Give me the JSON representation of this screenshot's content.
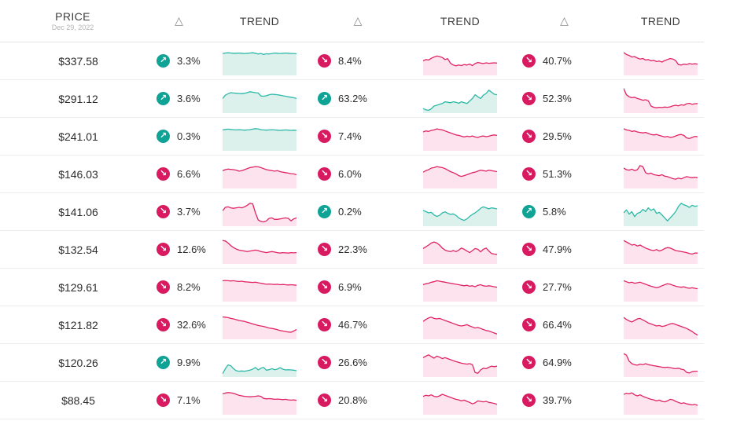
{
  "header": {
    "price_label": "PRICE",
    "price_date": "Dec 29, 2022",
    "delta_label": "△",
    "trend_label": "TREND"
  },
  "colors": {
    "up": {
      "icon": "#0fa396",
      "line": "#2cb9a8",
      "fill": "#dcf1ec"
    },
    "down": {
      "icon": "#d81b60",
      "line": "#e02565",
      "fill": "#fce3ee"
    }
  },
  "icons": {
    "up_arrow": "↗",
    "down_arrow": "↘"
  },
  "rows": [
    {
      "price": "$337.58",
      "cells": [
        {
          "dir": "up",
          "pct": "3.3%",
          "spark": [
            0.84,
            0.86,
            0.87,
            0.86,
            0.85,
            0.85,
            0.86,
            0.85,
            0.84,
            0.85,
            0.86,
            0.87,
            0.85,
            0.82,
            0.84,
            0.8,
            0.83,
            0.82,
            0.84,
            0.86,
            0.85,
            0.84,
            0.85,
            0.86,
            0.85,
            0.84,
            0.84,
            0.83
          ]
        },
        {
          "dir": "down",
          "pct": "8.4%",
          "spark": [
            0.55,
            0.6,
            0.58,
            0.65,
            0.7,
            0.74,
            0.72,
            0.68,
            0.6,
            0.63,
            0.45,
            0.38,
            0.35,
            0.38,
            0.36,
            0.4,
            0.38,
            0.42,
            0.36,
            0.44,
            0.48,
            0.46,
            0.44,
            0.47,
            0.45,
            0.46,
            0.47,
            0.46
          ]
        },
        {
          "dir": "down",
          "pct": "40.7%",
          "spark": [
            0.88,
            0.8,
            0.76,
            0.7,
            0.72,
            0.66,
            0.62,
            0.64,
            0.58,
            0.6,
            0.55,
            0.57,
            0.52,
            0.54,
            0.5,
            0.56,
            0.6,
            0.64,
            0.62,
            0.56,
            0.4,
            0.38,
            0.42,
            0.4,
            0.44,
            0.42,
            0.43,
            0.42
          ]
        }
      ]
    },
    {
      "price": "$291.12",
      "cells": [
        {
          "dir": "up",
          "pct": "3.6%",
          "spark": [
            0.55,
            0.68,
            0.74,
            0.78,
            0.77,
            0.76,
            0.75,
            0.74,
            0.76,
            0.78,
            0.82,
            0.8,
            0.78,
            0.77,
            0.65,
            0.64,
            0.66,
            0.7,
            0.72,
            0.71,
            0.7,
            0.68,
            0.66,
            0.64,
            0.62,
            0.6,
            0.58,
            0.55
          ]
        },
        {
          "dir": "up",
          "pct": "63.2%",
          "spark": [
            0.15,
            0.1,
            0.08,
            0.14,
            0.25,
            0.28,
            0.32,
            0.35,
            0.42,
            0.4,
            0.38,
            0.42,
            0.4,
            0.36,
            0.42,
            0.38,
            0.35,
            0.45,
            0.55,
            0.7,
            0.62,
            0.55,
            0.68,
            0.75,
            0.88,
            0.8,
            0.72,
            0.7
          ]
        },
        {
          "dir": "down",
          "pct": "52.3%",
          "spark": [
            0.95,
            0.7,
            0.62,
            0.58,
            0.6,
            0.55,
            0.52,
            0.48,
            0.5,
            0.46,
            0.25,
            0.2,
            0.18,
            0.2,
            0.19,
            0.21,
            0.2,
            0.22,
            0.26,
            0.28,
            0.26,
            0.3,
            0.28,
            0.34,
            0.36,
            0.32,
            0.34,
            0.35
          ]
        }
      ]
    },
    {
      "price": "$241.01",
      "cells": [
        {
          "dir": "up",
          "pct": "0.3%",
          "spark": [
            0.8,
            0.82,
            0.83,
            0.82,
            0.81,
            0.8,
            0.81,
            0.8,
            0.79,
            0.8,
            0.81,
            0.83,
            0.85,
            0.84,
            0.81,
            0.8,
            0.79,
            0.8,
            0.81,
            0.8,
            0.79,
            0.78,
            0.79,
            0.8,
            0.79,
            0.78,
            0.79,
            0.78
          ]
        },
        {
          "dir": "down",
          "pct": "7.4%",
          "spark": [
            0.72,
            0.76,
            0.74,
            0.78,
            0.8,
            0.84,
            0.82,
            0.8,
            0.76,
            0.72,
            0.68,
            0.64,
            0.6,
            0.58,
            0.55,
            0.52,
            0.55,
            0.53,
            0.56,
            0.52,
            0.5,
            0.54,
            0.56,
            0.53,
            0.55,
            0.58,
            0.6,
            0.58
          ]
        },
        {
          "dir": "down",
          "pct": "29.5%",
          "spark": [
            0.85,
            0.8,
            0.78,
            0.74,
            0.76,
            0.72,
            0.7,
            0.68,
            0.7,
            0.66,
            0.62,
            0.6,
            0.62,
            0.58,
            0.55,
            0.52,
            0.54,
            0.5,
            0.52,
            0.56,
            0.6,
            0.62,
            0.58,
            0.48,
            0.46,
            0.5,
            0.54,
            0.53
          ]
        }
      ]
    },
    {
      "price": "$146.03",
      "cells": [
        {
          "dir": "down",
          "pct": "6.6%",
          "spark": [
            0.68,
            0.72,
            0.74,
            0.73,
            0.72,
            0.7,
            0.66,
            0.68,
            0.72,
            0.76,
            0.8,
            0.82,
            0.84,
            0.83,
            0.8,
            0.76,
            0.72,
            0.7,
            0.68,
            0.66,
            0.68,
            0.64,
            0.62,
            0.6,
            0.58,
            0.56,
            0.55,
            0.52
          ]
        },
        {
          "dir": "down",
          "pct": "6.0%",
          "spark": [
            0.62,
            0.68,
            0.72,
            0.78,
            0.8,
            0.84,
            0.82,
            0.8,
            0.76,
            0.7,
            0.64,
            0.6,
            0.55,
            0.48,
            0.45,
            0.48,
            0.52,
            0.56,
            0.6,
            0.62,
            0.66,
            0.7,
            0.68,
            0.66,
            0.7,
            0.68,
            0.66,
            0.64
          ]
        },
        {
          "dir": "down",
          "pct": "51.3%",
          "spark": [
            0.78,
            0.72,
            0.7,
            0.74,
            0.68,
            0.72,
            0.88,
            0.84,
            0.6,
            0.55,
            0.58,
            0.52,
            0.5,
            0.48,
            0.52,
            0.46,
            0.44,
            0.4,
            0.36,
            0.34,
            0.38,
            0.35,
            0.4,
            0.44,
            0.42,
            0.4,
            0.42,
            0.4
          ]
        }
      ]
    },
    {
      "price": "$141.06",
      "cells": [
        {
          "dir": "down",
          "pct": "3.7%",
          "spark": [
            0.58,
            0.72,
            0.74,
            0.7,
            0.68,
            0.7,
            0.72,
            0.7,
            0.74,
            0.8,
            0.88,
            0.86,
            0.5,
            0.22,
            0.16,
            0.14,
            0.18,
            0.28,
            0.3,
            0.24,
            0.24,
            0.26,
            0.28,
            0.3,
            0.28,
            0.18,
            0.26,
            0.3
          ]
        },
        {
          "dir": "up",
          "pct": "0.2%",
          "spark": [
            0.6,
            0.55,
            0.5,
            0.52,
            0.42,
            0.36,
            0.4,
            0.5,
            0.54,
            0.48,
            0.44,
            0.46,
            0.4,
            0.3,
            0.24,
            0.2,
            0.26,
            0.36,
            0.44,
            0.5,
            0.58,
            0.68,
            0.74,
            0.7,
            0.66,
            0.7,
            0.68,
            0.66
          ]
        },
        {
          "dir": "up",
          "pct": "5.8%",
          "spark": [
            0.5,
            0.62,
            0.45,
            0.55,
            0.35,
            0.48,
            0.52,
            0.64,
            0.55,
            0.7,
            0.6,
            0.66,
            0.48,
            0.52,
            0.42,
            0.3,
            0.18,
            0.3,
            0.42,
            0.55,
            0.75,
            0.88,
            0.82,
            0.78,
            0.72,
            0.8,
            0.76,
            0.78
          ]
        }
      ]
    },
    {
      "price": "$132.54",
      "cells": [
        {
          "dir": "down",
          "pct": "12.6%",
          "spark": [
            0.9,
            0.88,
            0.8,
            0.7,
            0.62,
            0.56,
            0.52,
            0.5,
            0.48,
            0.46,
            0.48,
            0.5,
            0.52,
            0.5,
            0.46,
            0.44,
            0.42,
            0.44,
            0.46,
            0.44,
            0.42,
            0.4,
            0.42,
            0.41,
            0.4,
            0.42,
            0.41,
            0.42
          ]
        },
        {
          "dir": "down",
          "pct": "22.3%",
          "spark": [
            0.58,
            0.65,
            0.72,
            0.8,
            0.84,
            0.8,
            0.72,
            0.6,
            0.52,
            0.48,
            0.46,
            0.5,
            0.46,
            0.52,
            0.6,
            0.55,
            0.48,
            0.42,
            0.5,
            0.58,
            0.55,
            0.45,
            0.55,
            0.6,
            0.48,
            0.38,
            0.36,
            0.35
          ]
        },
        {
          "dir": "down",
          "pct": "47.9%",
          "spark": [
            0.9,
            0.84,
            0.78,
            0.72,
            0.74,
            0.68,
            0.72,
            0.66,
            0.6,
            0.56,
            0.52,
            0.5,
            0.54,
            0.48,
            0.52,
            0.58,
            0.62,
            0.6,
            0.55,
            0.5,
            0.48,
            0.46,
            0.44,
            0.42,
            0.38,
            0.36,
            0.4,
            0.4
          ]
        }
      ]
    },
    {
      "price": "$129.61",
      "cells": [
        {
          "dir": "down",
          "pct": "8.2%",
          "spark": [
            0.8,
            0.81,
            0.8,
            0.79,
            0.8,
            0.78,
            0.77,
            0.78,
            0.76,
            0.75,
            0.74,
            0.73,
            0.74,
            0.72,
            0.7,
            0.68,
            0.66,
            0.67,
            0.66,
            0.65,
            0.66,
            0.64,
            0.65,
            0.64,
            0.63,
            0.64,
            0.63,
            0.62
          ]
        },
        {
          "dir": "down",
          "pct": "6.9%",
          "spark": [
            0.64,
            0.68,
            0.7,
            0.74,
            0.76,
            0.8,
            0.78,
            0.76,
            0.74,
            0.72,
            0.7,
            0.68,
            0.66,
            0.64,
            0.62,
            0.6,
            0.62,
            0.58,
            0.6,
            0.56,
            0.62,
            0.64,
            0.6,
            0.58,
            0.6,
            0.58,
            0.56,
            0.54
          ]
        },
        {
          "dir": "down",
          "pct": "27.7%",
          "spark": [
            0.8,
            0.76,
            0.72,
            0.74,
            0.7,
            0.72,
            0.74,
            0.7,
            0.66,
            0.62,
            0.58,
            0.55,
            0.52,
            0.55,
            0.6,
            0.64,
            0.68,
            0.66,
            0.62,
            0.58,
            0.56,
            0.54,
            0.56,
            0.52,
            0.5,
            0.52,
            0.5,
            0.48
          ]
        }
      ]
    },
    {
      "price": "$121.82",
      "cells": [
        {
          "dir": "down",
          "pct": "32.6%",
          "spark": [
            0.86,
            0.85,
            0.83,
            0.8,
            0.78,
            0.75,
            0.72,
            0.7,
            0.68,
            0.65,
            0.62,
            0.58,
            0.55,
            0.52,
            0.5,
            0.48,
            0.45,
            0.42,
            0.4,
            0.38,
            0.35,
            0.32,
            0.3,
            0.28,
            0.26,
            0.25,
            0.3,
            0.36
          ]
        },
        {
          "dir": "down",
          "pct": "46.7%",
          "spark": [
            0.68,
            0.76,
            0.82,
            0.85,
            0.8,
            0.78,
            0.8,
            0.76,
            0.72,
            0.68,
            0.64,
            0.6,
            0.56,
            0.52,
            0.5,
            0.52,
            0.55,
            0.5,
            0.46,
            0.42,
            0.44,
            0.4,
            0.36,
            0.32,
            0.3,
            0.26,
            0.22,
            0.18
          ]
        },
        {
          "dir": "down",
          "pct": "66.4%",
          "spark": [
            0.84,
            0.76,
            0.7,
            0.66,
            0.72,
            0.78,
            0.8,
            0.74,
            0.68,
            0.62,
            0.58,
            0.54,
            0.5,
            0.52,
            0.48,
            0.5,
            0.54,
            0.58,
            0.6,
            0.56,
            0.52,
            0.48,
            0.44,
            0.4,
            0.34,
            0.28,
            0.2,
            0.14
          ]
        }
      ]
    },
    {
      "price": "$120.26",
      "cells": [
        {
          "dir": "up",
          "pct": "9.9%",
          "spark": [
            0.1,
            0.3,
            0.45,
            0.42,
            0.3,
            0.22,
            0.2,
            0.21,
            0.2,
            0.22,
            0.24,
            0.28,
            0.35,
            0.25,
            0.32,
            0.35,
            0.24,
            0.26,
            0.3,
            0.26,
            0.28,
            0.34,
            0.28,
            0.25,
            0.26,
            0.25,
            0.24,
            0.22
          ]
        },
        {
          "dir": "down",
          "pct": "26.6%",
          "spark": [
            0.74,
            0.8,
            0.85,
            0.78,
            0.72,
            0.8,
            0.76,
            0.7,
            0.74,
            0.7,
            0.66,
            0.62,
            0.58,
            0.55,
            0.52,
            0.5,
            0.48,
            0.5,
            0.46,
            0.15,
            0.12,
            0.25,
            0.32,
            0.3,
            0.36,
            0.4,
            0.38,
            0.4
          ]
        },
        {
          "dir": "down",
          "pct": "64.9%",
          "spark": [
            0.9,
            0.84,
            0.6,
            0.5,
            0.46,
            0.44,
            0.48,
            0.46,
            0.5,
            0.46,
            0.44,
            0.42,
            0.4,
            0.38,
            0.36,
            0.35,
            0.36,
            0.34,
            0.32,
            0.3,
            0.32,
            0.28,
            0.26,
            0.15,
            0.13,
            0.18,
            0.2,
            0.2
          ]
        }
      ]
    },
    {
      "price": "$88.45",
      "cells": [
        {
          "dir": "down",
          "pct": "7.1%",
          "spark": [
            0.8,
            0.83,
            0.85,
            0.84,
            0.82,
            0.78,
            0.74,
            0.72,
            0.7,
            0.69,
            0.68,
            0.69,
            0.7,
            0.72,
            0.7,
            0.62,
            0.6,
            0.61,
            0.6,
            0.58,
            0.59,
            0.58,
            0.57,
            0.58,
            0.56,
            0.55,
            0.56,
            0.54
          ]
        },
        {
          "dir": "down",
          "pct": "20.8%",
          "spark": [
            0.7,
            0.74,
            0.72,
            0.76,
            0.7,
            0.68,
            0.72,
            0.78,
            0.74,
            0.7,
            0.66,
            0.62,
            0.58,
            0.56,
            0.52,
            0.55,
            0.5,
            0.46,
            0.4,
            0.44,
            0.52,
            0.5,
            0.48,
            0.5,
            0.46,
            0.44,
            0.42,
            0.38
          ]
        },
        {
          "dir": "down",
          "pct": "39.7%",
          "spark": [
            0.78,
            0.82,
            0.8,
            0.84,
            0.76,
            0.72,
            0.76,
            0.7,
            0.66,
            0.62,
            0.58,
            0.56,
            0.52,
            0.55,
            0.5,
            0.48,
            0.52,
            0.58,
            0.56,
            0.5,
            0.46,
            0.42,
            0.44,
            0.4,
            0.38,
            0.36,
            0.38,
            0.34
          ]
        }
      ]
    }
  ]
}
